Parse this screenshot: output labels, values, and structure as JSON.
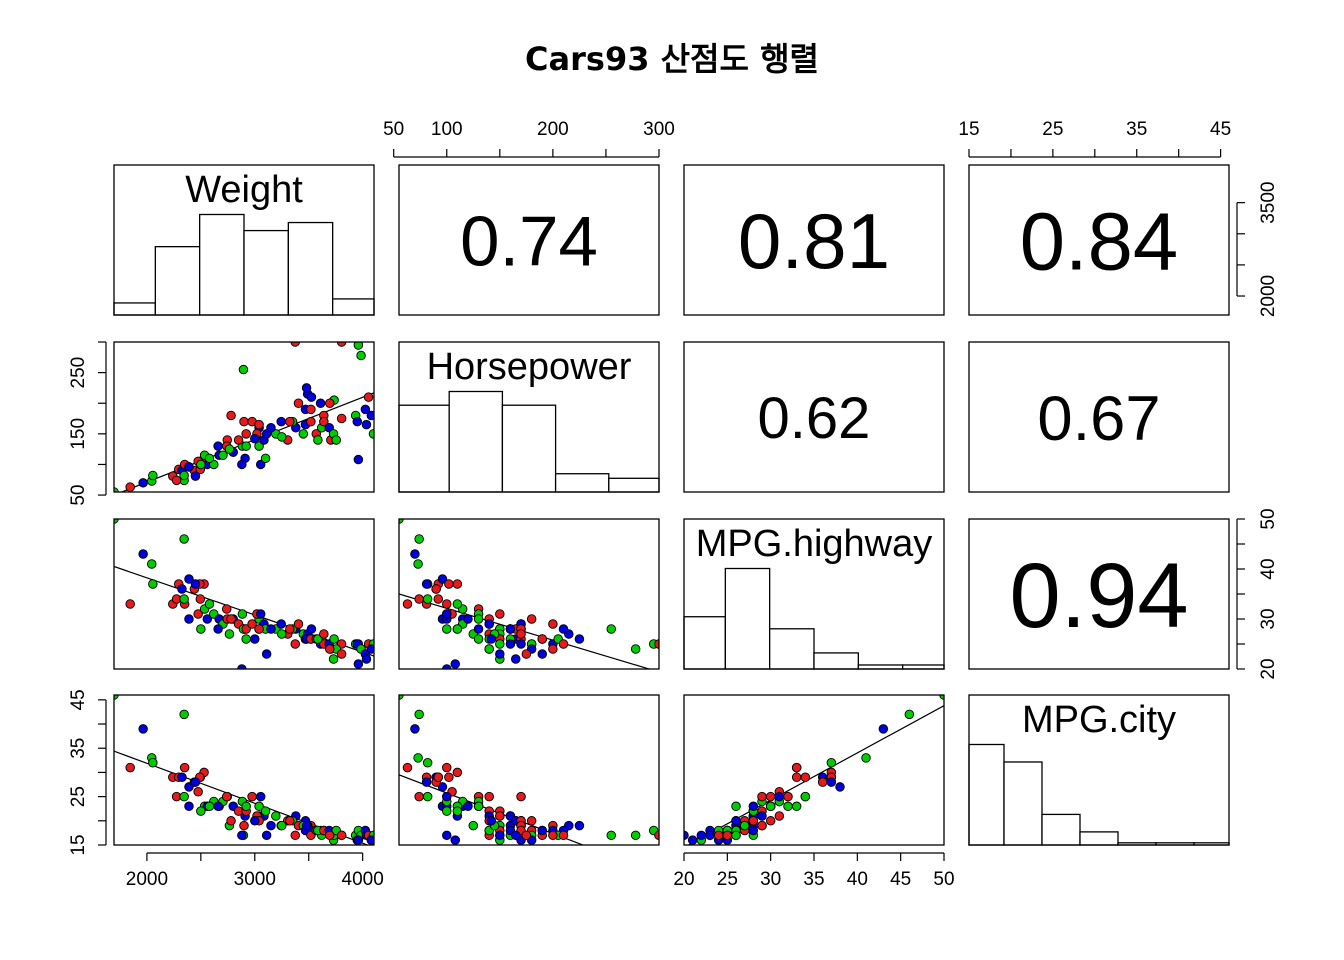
{
  "title": "Cars93 산점도 행렬",
  "colors": {
    "group1": "#e41a1c",
    "group2": "#00cc00",
    "group3": "#0000dd",
    "stroke": "#000000"
  },
  "chart_data": {
    "type": "scatter",
    "layout": "pairs-matrix",
    "variables": [
      {
        "name": "Weight",
        "range": [
          1695,
          4105
        ],
        "ticks": [
          2000,
          2500,
          3000,
          3500,
          4000
        ],
        "tick_labels": [
          "2000",
          "3000",
          "4000"
        ],
        "tick_label_values": [
          2000,
          3000,
          4000
        ],
        "vertical_tick_labels": [
          "2000",
          "3500"
        ],
        "vertical_tick_label_values": [
          2000,
          3500
        ]
      },
      {
        "name": "Horsepower",
        "range": [
          55,
          300
        ],
        "ticks": [
          50,
          100,
          150,
          200,
          250,
          300
        ],
        "tick_labels": [
          "50",
          "100",
          "200",
          "300"
        ],
        "tick_label_values": [
          50,
          100,
          200,
          300
        ],
        "vertical_tick_labels": [
          "50",
          "150",
          "250"
        ],
        "vertical_tick_label_values": [
          50,
          150,
          250
        ]
      },
      {
        "name": "MPG.highway",
        "range": [
          20,
          50
        ],
        "ticks": [
          20,
          25,
          30,
          35,
          40,
          45,
          50
        ],
        "tick_labels": [
          "20",
          "25",
          "30",
          "35",
          "40",
          "45",
          "50"
        ],
        "tick_label_values": [
          20,
          25,
          30,
          35,
          40,
          45,
          50
        ],
        "vertical_tick_labels": [
          "20",
          "30",
          "40",
          "50"
        ],
        "vertical_tick_label_values": [
          20,
          30,
          40,
          50
        ]
      },
      {
        "name": "MPG.city",
        "range": [
          15,
          46
        ],
        "ticks": [
          15,
          20,
          25,
          30,
          35,
          40,
          45
        ],
        "tick_labels": [
          "15",
          "25",
          "35",
          "45"
        ],
        "tick_label_values": [
          15,
          25,
          35,
          45
        ],
        "vertical_tick_labels": [
          "15",
          "25",
          "35",
          "45"
        ],
        "vertical_tick_label_values": [
          15,
          25,
          35,
          45
        ]
      }
    ],
    "correlations": [
      {
        "row": 0,
        "col": 1,
        "label": "0.74"
      },
      {
        "row": 0,
        "col": 2,
        "label": "0.81"
      },
      {
        "row": 0,
        "col": 3,
        "label": "0.84"
      },
      {
        "row": 1,
        "col": 2,
        "label": "0.62"
      },
      {
        "row": 1,
        "col": 3,
        "label": "0.67"
      },
      {
        "row": 2,
        "col": 3,
        "label": "0.94"
      }
    ],
    "histograms": [
      {
        "var": 0,
        "breaks": [
          1500,
          2000,
          2500,
          3000,
          3500,
          4000,
          4500
        ],
        "counts": [
          3,
          17,
          25,
          21,
          23,
          4
        ]
      },
      {
        "var": 1,
        "breaks": [
          50,
          100,
          150,
          200,
          250,
          300
        ],
        "counts": [
          38,
          44,
          38,
          8,
          6
        ]
      },
      {
        "var": 2,
        "breaks": [
          20,
          25,
          30,
          35,
          40,
          45,
          50
        ],
        "counts": [
          26,
          50,
          20,
          8,
          2,
          2
        ]
      },
      {
        "var": 3,
        "breaks": [
          15,
          20,
          25,
          30,
          35,
          40,
          45,
          50
        ],
        "counts": [
          46,
          38,
          14,
          6,
          1,
          1,
          1
        ]
      }
    ],
    "fit_lines": [
      {
        "x": 0,
        "y": 1,
        "from": [
          1695,
          50
        ],
        "to": [
          4105,
          217
        ]
      },
      {
        "x": 1,
        "y": 2,
        "from": [
          55,
          35
        ],
        "to": [
          300,
          19.4
        ]
      },
      {
        "x": 0,
        "y": 2,
        "from": [
          1695,
          40.5
        ],
        "to": [
          4105,
          22.6
        ]
      },
      {
        "x": 1,
        "y": 3,
        "from": [
          55,
          29.5
        ],
        "to": [
          300,
          9
        ]
      },
      {
        "x": 0,
        "y": 3,
        "from": [
          1695,
          34.4
        ],
        "to": [
          4105,
          14.5
        ]
      },
      {
        "x": 2,
        "y": 3,
        "from": [
          20,
          14.5
        ],
        "to": [
          50,
          43.8
        ]
      }
    ],
    "points": [
      [
        1695,
        55,
        50,
        46,
        1
      ],
      [
        1965,
        70,
        43,
        39,
        2
      ],
      [
        2045,
        73,
        41,
        33,
        1
      ],
      [
        2345,
        74,
        46,
        42,
        1
      ],
      [
        2055,
        82,
        37,
        32,
        1
      ],
      [
        1845,
        63,
        33,
        31,
        0
      ],
      [
        2240,
        81,
        33,
        29,
        0
      ],
      [
        2295,
        92,
        37,
        29,
        0
      ],
      [
        2325,
        90,
        36,
        29,
        2
      ],
      [
        2350,
        100,
        33,
        31,
        0
      ],
      [
        2390,
        96,
        38,
        27,
        2
      ],
      [
        2440,
        90,
        36,
        28,
        0
      ],
      [
        2275,
        74,
        34,
        25,
        0
      ],
      [
        2495,
        92,
        34,
        29,
        0
      ],
      [
        2530,
        110,
        37,
        30,
        0
      ],
      [
        2490,
        102,
        37,
        29,
        0
      ],
      [
        2450,
        81,
        37,
        28,
        2
      ],
      [
        2345,
        82,
        34,
        25,
        1
      ],
      [
        2475,
        105,
        31,
        26,
        0
      ],
      [
        2390,
        96,
        30,
        23,
        2
      ],
      [
        2535,
        115,
        32,
        23,
        1
      ],
      [
        2560,
        100,
        30,
        23,
        2
      ],
      [
        2620,
        100,
        31,
        24,
        1
      ],
      [
        2670,
        115,
        30,
        23,
        2
      ],
      [
        2705,
        115,
        29,
        24,
        1
      ],
      [
        2745,
        140,
        30,
        25,
        0
      ],
      [
        2580,
        110,
        33,
        23,
        1
      ],
      [
        2740,
        130,
        32,
        25,
        0
      ],
      [
        2800,
        120,
        30,
        23,
        2
      ],
      [
        2885,
        130,
        31,
        24,
        1
      ],
      [
        2910,
        110,
        28,
        21,
        2
      ],
      [
        2850,
        140,
        29,
        22,
        0
      ],
      [
        2765,
        125,
        27,
        19,
        1
      ],
      [
        2900,
        170,
        28,
        19,
        0
      ],
      [
        2780,
        180,
        30,
        20,
        0
      ],
      [
        2895,
        255,
        28,
        17,
        1
      ],
      [
        2920,
        150,
        28,
        22,
        0
      ],
      [
        3040,
        160,
        28,
        21,
        2
      ],
      [
        2975,
        170,
        29,
        25,
        0
      ],
      [
        3040,
        130,
        30,
        23,
        1
      ],
      [
        3085,
        140,
        29,
        21,
        2
      ],
      [
        3195,
        150,
        28,
        21,
        1
      ],
      [
        3020,
        150,
        31,
        21,
        0
      ],
      [
        3055,
        100,
        31,
        25,
        2
      ],
      [
        3100,
        110,
        28,
        22,
        1
      ],
      [
        3150,
        160,
        28,
        19,
        2
      ],
      [
        3040,
        165,
        28,
        20,
        0
      ],
      [
        3245,
        170,
        29,
        19,
        2
      ],
      [
        3305,
        140,
        27,
        20,
        0
      ],
      [
        3380,
        160,
        28,
        21,
        2
      ],
      [
        3350,
        170,
        28,
        20,
        1
      ],
      [
        3470,
        165,
        26,
        20,
        2
      ],
      [
        3405,
        200,
        29,
        19,
        0
      ],
      [
        3325,
        170,
        28,
        20,
        0
      ],
      [
        3450,
        150,
        27,
        19,
        1
      ],
      [
        3470,
        190,
        26,
        18,
        2
      ],
      [
        3520,
        170,
        26,
        19,
        0
      ],
      [
        3490,
        215,
        27,
        19,
        2
      ],
      [
        3525,
        210,
        28,
        18,
        2
      ],
      [
        3480,
        225,
        26,
        19,
        2
      ],
      [
        3520,
        190,
        26,
        17,
        0
      ],
      [
        3610,
        200,
        25,
        18,
        2
      ],
      [
        3570,
        150,
        26,
        18,
        0
      ],
      [
        3620,
        160,
        26,
        17,
        1
      ],
      [
        3640,
        180,
        25,
        18,
        0
      ],
      [
        3585,
        140,
        26,
        18,
        1
      ],
      [
        3640,
        170,
        27,
        18,
        0
      ],
      [
        3690,
        160,
        25,
        18,
        2
      ],
      [
        3705,
        140,
        24,
        17,
        0
      ],
      [
        3730,
        150,
        22,
        16,
        1
      ],
      [
        3735,
        205,
        26,
        17,
        1
      ],
      [
        3805,
        300,
        25,
        17,
        0
      ],
      [
        3935,
        180,
        25,
        17,
        1
      ],
      [
        3960,
        295,
        25,
        18,
        1
      ],
      [
        3950,
        170,
        25,
        16,
        2
      ],
      [
        3985,
        278,
        24,
        17,
        1
      ],
      [
        4025,
        190,
        23,
        18,
        2
      ],
      [
        4035,
        165,
        22,
        17,
        2
      ],
      [
        4055,
        210,
        25,
        17,
        0
      ],
      [
        4100,
        150,
        25,
        17,
        1
      ],
      [
        4080,
        180,
        24,
        16,
        2
      ],
      [
        3960,
        108,
        21,
        16,
        2
      ],
      [
        3755,
        140,
        24,
        18,
        1
      ],
      [
        3805,
        175,
        23,
        17,
        0
      ],
      [
        3375,
        300,
        25,
        17,
        0
      ],
      [
        3695,
        200,
        24,
        17,
        0
      ],
      [
        2500,
        100,
        28,
        22,
        1
      ],
      [
        2660,
        130,
        28,
        23,
        2
      ],
      [
        2920,
        130,
        26,
        23,
        1
      ],
      [
        3110,
        150,
        23,
        17,
        2
      ],
      [
        2880,
        100,
        20,
        17,
        2
      ],
      [
        3250,
        145,
        27,
        19,
        1
      ],
      [
        3000,
        142,
        26,
        20,
        2
      ]
    ]
  }
}
